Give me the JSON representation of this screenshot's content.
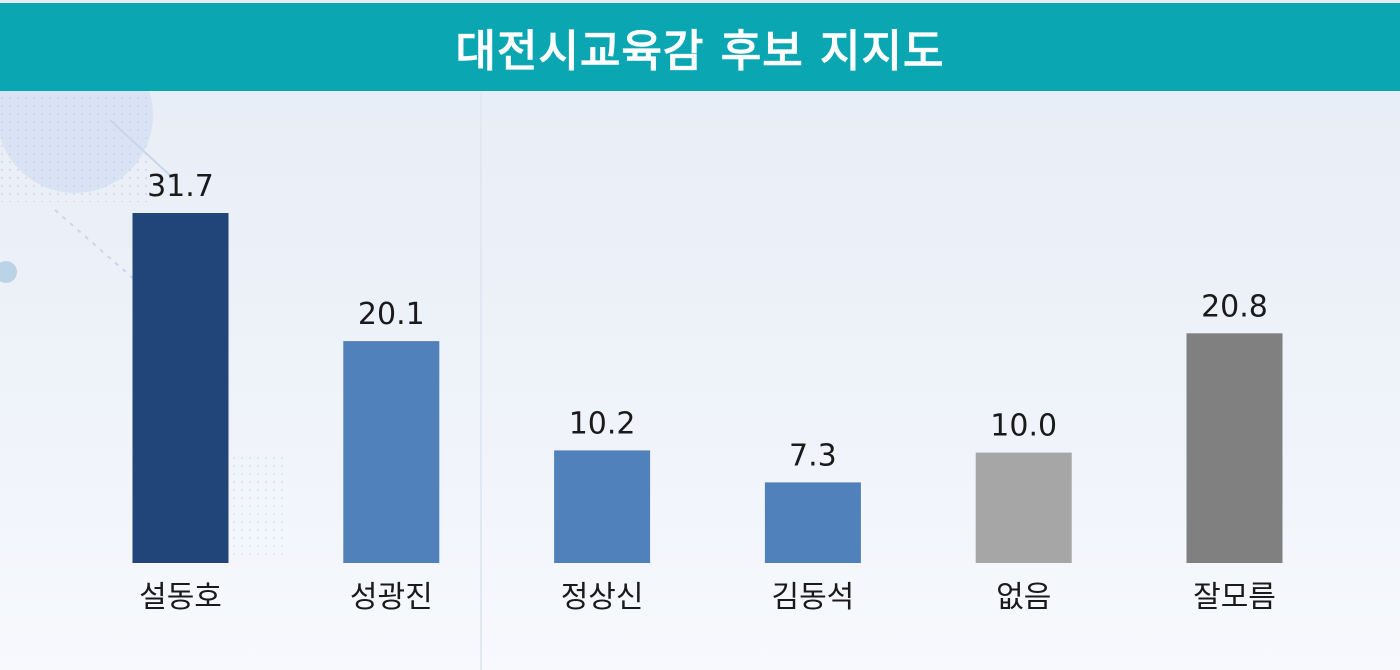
{
  "chart_data": {
    "type": "bar",
    "title": "대전시교육감 후보 지지도",
    "categories": [
      "설동호",
      "성광진",
      "정상신",
      "김동석",
      "없음",
      "잘모름"
    ],
    "values": [
      31.7,
      20.1,
      10.2,
      7.3,
      10.0,
      20.8
    ],
    "value_labels": [
      "31.7",
      "20.1",
      "10.2",
      "7.3",
      "10.0",
      "20.8"
    ],
    "colors": [
      "#214578",
      "#5181bb",
      "#5181bb",
      "#5181bb",
      "#a6a6a6",
      "#808080"
    ],
    "ylim": [
      0,
      31.7
    ],
    "grid": false,
    "legend": "none"
  },
  "theme": {
    "title_bar_color": "#0aa7b3"
  }
}
